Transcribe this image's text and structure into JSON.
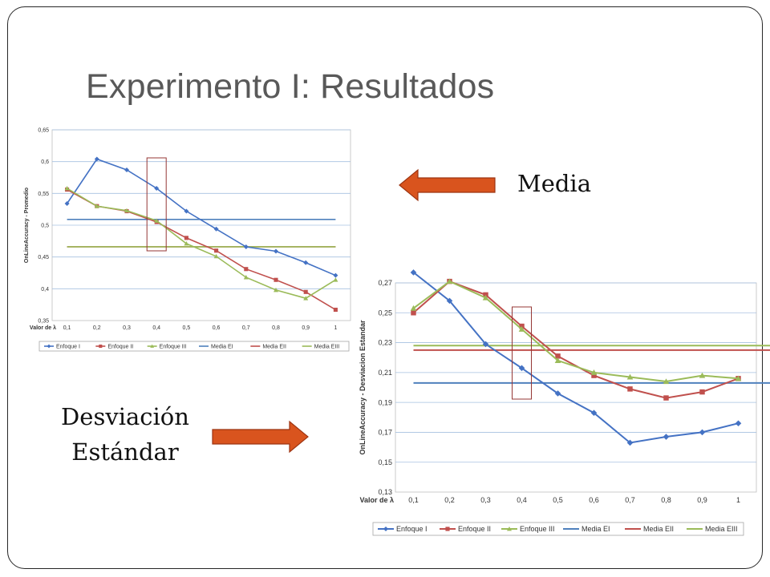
{
  "slide": {
    "title": "Experimento I: Resultados",
    "label_media": "Media",
    "label_desv_line1": "Desviación",
    "label_desv_line2": "Estándar"
  },
  "chart_data": [
    {
      "type": "line",
      "xlabel": "Valor de λ",
      "ylabel": "OnLineAccuracy - Promedio",
      "categories": [
        "0,1",
        "0,2",
        "0,3",
        "0,4",
        "0,5",
        "0,6",
        "0,7",
        "0,8",
        "0,9",
        "1"
      ],
      "ylim": [
        0.35,
        0.65
      ],
      "yticks": [
        "0,35",
        "0,4",
        "0,45",
        "0,5",
        "0,55",
        "0,6",
        "0,65"
      ],
      "grid": true,
      "legend": "bottom",
      "highlight_category": "0,4",
      "series": [
        {
          "name": "Enfoque I",
          "color": "#4472C4",
          "marker": "diamond",
          "values": [
            0.534,
            0.604,
            0.587,
            0.558,
            0.522,
            0.494,
            0.466,
            0.459,
            0.441,
            0.421
          ]
        },
        {
          "name": "Enfoque II",
          "color": "#C0504D",
          "marker": "square",
          "values": [
            0.556,
            0.53,
            0.522,
            0.505,
            0.48,
            0.46,
            0.431,
            0.414,
            0.395,
            0.367
          ]
        },
        {
          "name": "Enfoque III",
          "color": "#9BBB59",
          "marker": "triangle",
          "values": [
            0.558,
            0.53,
            0.523,
            0.507,
            0.471,
            0.451,
            0.418,
            0.398,
            0.385,
            0.414
          ]
        },
        {
          "name": "Media EI",
          "color": "#4F81BD",
          "marker": "none",
          "values": [
            0.509,
            0.509,
            0.509,
            0.509,
            0.509,
            0.509,
            0.509,
            0.509,
            0.509,
            0.509
          ]
        },
        {
          "name": "Media EII",
          "color": "#C0504D",
          "marker": "none",
          "values": [
            0.466,
            0.466,
            0.466,
            0.466,
            0.466,
            0.466,
            0.466,
            0.466,
            0.466,
            0.466
          ]
        },
        {
          "name": "Media EIII",
          "color": "#9BBB59",
          "marker": "none",
          "values": [
            0.466,
            0.466,
            0.466,
            0.466,
            0.466,
            0.466,
            0.466,
            0.466,
            0.466,
            0.466
          ]
        }
      ]
    },
    {
      "type": "line",
      "xlabel": "Valor de λ",
      "ylabel": "OnLineAccuracy - Desviacion Estandar",
      "categories": [
        "0,1",
        "0,2",
        "0,3",
        "0,4",
        "0,5",
        "0,6",
        "0,7",
        "0,8",
        "0,9",
        "1"
      ],
      "ylim": [
        0.13,
        0.27
      ],
      "yticks": [
        "0,13",
        "0,15",
        "0,17",
        "0,19",
        "0,21",
        "0,23",
        "0,25",
        "0,27"
      ],
      "grid": true,
      "legend": "bottom",
      "highlight_category": "0,4",
      "series": [
        {
          "name": "Enfoque I",
          "color": "#4472C4",
          "marker": "diamond",
          "values": [
            0.277,
            0.258,
            0.229,
            0.213,
            0.196,
            0.183,
            0.163,
            0.167,
            0.17,
            0.176
          ]
        },
        {
          "name": "Enfoque II",
          "color": "#C0504D",
          "marker": "square",
          "values": [
            0.25,
            0.271,
            0.262,
            0.241,
            0.221,
            0.208,
            0.199,
            0.193,
            0.197,
            0.206
          ]
        },
        {
          "name": "Enfoque III",
          "color": "#9BBB59",
          "marker": "triangle",
          "values": [
            0.253,
            0.271,
            0.26,
            0.239,
            0.218,
            0.21,
            0.207,
            0.204,
            0.208,
            0.206
          ]
        },
        {
          "name": "Media EI",
          "color": "#4F81BD",
          "marker": "none",
          "values": [
            0.203,
            0.203,
            0.203,
            0.203,
            0.203,
            0.203,
            0.203,
            0.203,
            0.203,
            0.203
          ]
        },
        {
          "name": "Media EII",
          "color": "#C0504D",
          "marker": "none",
          "values": [
            0.225,
            0.225,
            0.225,
            0.225,
            0.225,
            0.225,
            0.225,
            0.225,
            0.225,
            0.225
          ]
        },
        {
          "name": "Media EIII",
          "color": "#9BBB59",
          "marker": "none",
          "values": [
            0.228,
            0.228,
            0.228,
            0.228,
            0.228,
            0.228,
            0.228,
            0.228,
            0.228,
            0.228
          ]
        }
      ]
    }
  ],
  "arrows": {
    "color": "#D9541E",
    "border": "#9C3412"
  }
}
